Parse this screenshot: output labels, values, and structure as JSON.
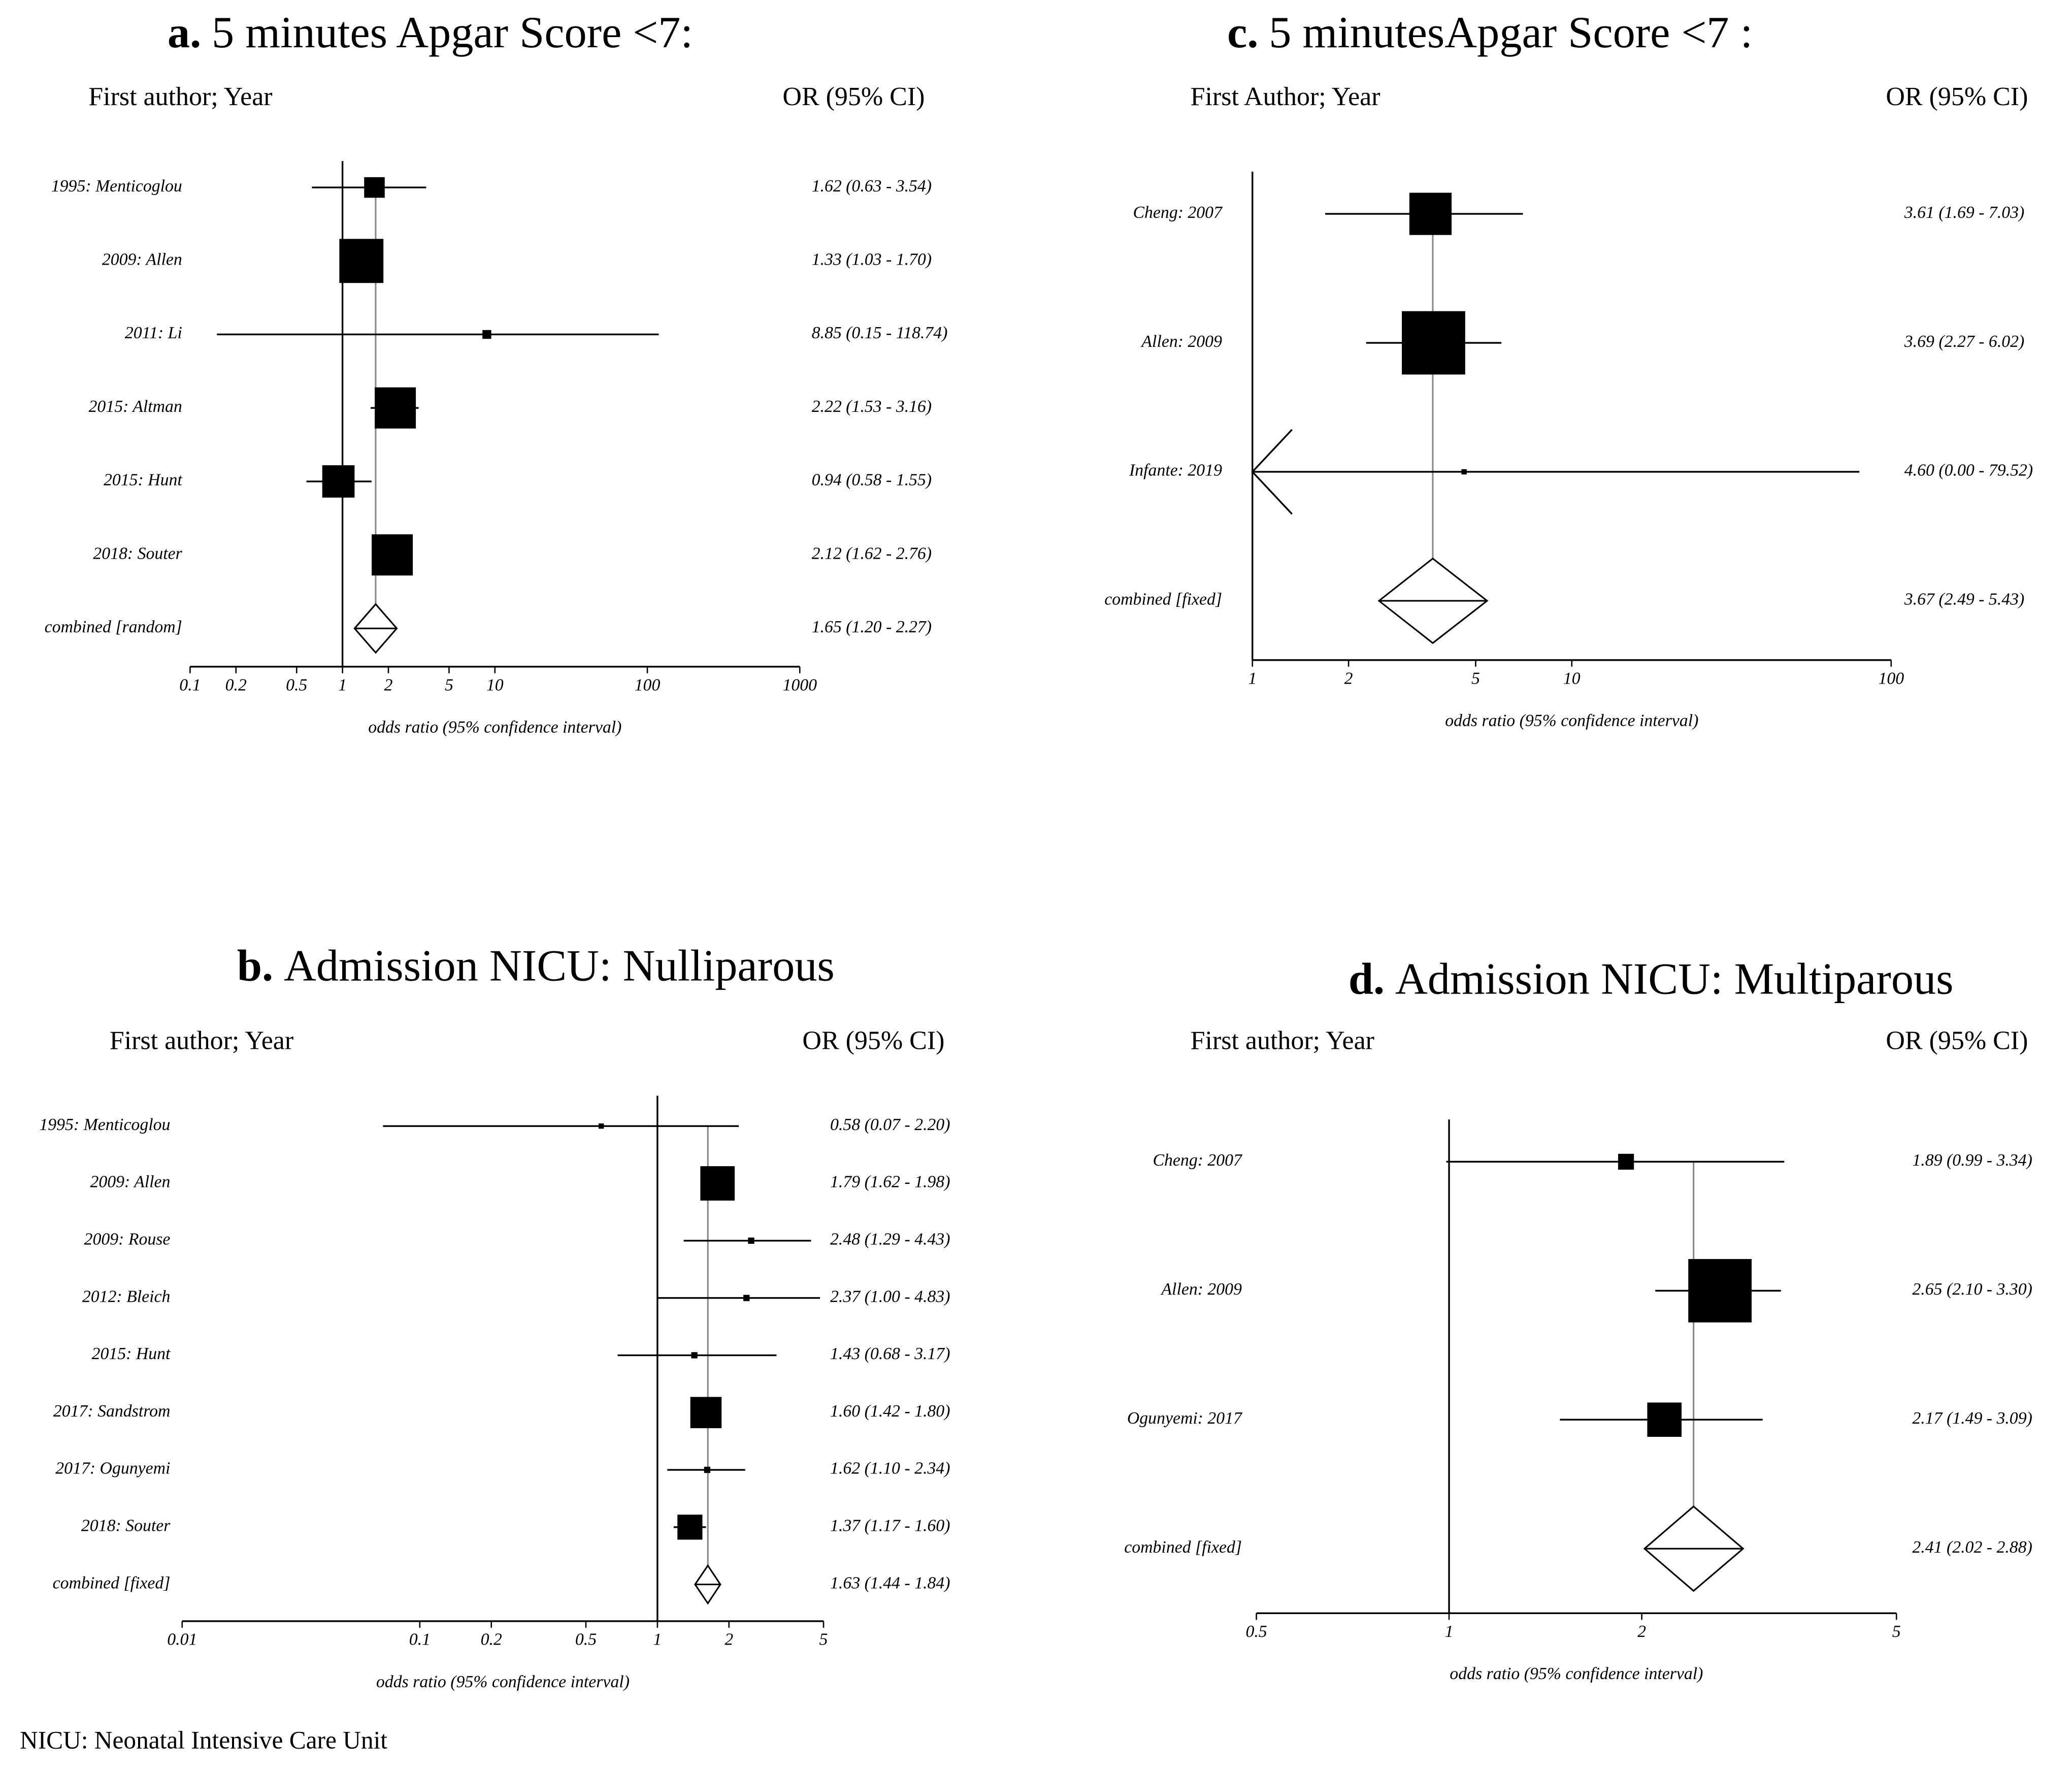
{
  "chart_data": [
    {
      "type": "forest",
      "panel_label": "a.",
      "title": "5 minutes Apgar Score <7:",
      "column_headers": [
        "First author; Year",
        "OR (95% CI)"
      ],
      "studies": [
        "1995: Menticoglou",
        "2009: Allen",
        "2011: Li",
        "2015: Altman",
        "2015: Hunt",
        "2018: Souter"
      ],
      "values": [
        1.62,
        1.33,
        8.85,
        2.22,
        0.94,
        2.12
      ],
      "lower": [
        0.63,
        1.03,
        0.15,
        1.53,
        0.58,
        1.62
      ],
      "upper": [
        3.54,
        1.7,
        118.74,
        3.16,
        1.55,
        2.76
      ],
      "value_labels": [
        "1.62 (0.63 - 3.54)",
        "1.33 (1.03 - 1.70)",
        "8.85 (0.15 - 118.74)",
        "2.22 (1.53 - 3.16)",
        "0.94 (0.58 - 1.55)",
        "2.12 (1.62 - 2.76)"
      ],
      "weights": [
        7,
        15,
        3,
        14,
        11,
        14
      ],
      "combined": {
        "label": "combined [random]",
        "value": 1.65,
        "lower": 1.2,
        "upper": 2.27,
        "value_label": "1.65 (1.20 - 2.27)"
      },
      "xlim": [
        0.1,
        1000
      ],
      "xticks": [
        0.1,
        0.2,
        0.5,
        1,
        2,
        5,
        10,
        100,
        1000
      ],
      "log_x": true,
      "xlabel": "odds ratio (95% confidence interval)"
    },
    {
      "type": "forest",
      "panel_label": "b.",
      "title": "Admission NICU: Nulliparous",
      "column_headers": [
        "First author; Year",
        "OR (95% CI)"
      ],
      "studies": [
        "1995: Menticoglou",
        "2009: Allen",
        "2009: Rouse",
        "2012: Bleich",
        "2015: Hunt",
        "2017: Sandstrom",
        "2017: Ogunyemi",
        "2018: Souter"
      ],
      "values": [
        0.58,
        1.79,
        2.48,
        2.37,
        1.43,
        1.6,
        1.62,
        1.37
      ],
      "lower": [
        0.07,
        1.62,
        1.29,
        1.0,
        0.68,
        1.42,
        1.1,
        1.17
      ],
      "upper": [
        2.2,
        1.98,
        4.43,
        4.83,
        3.17,
        1.8,
        2.34,
        1.6
      ],
      "value_labels": [
        "0.58 (0.07 - 2.20)",
        "1.79 (1.62 - 1.98)",
        "2.48 (1.29 - 4.43)",
        "2.37 (1.00 - 4.83)",
        "1.43 (0.68 - 3.17)",
        "1.60 (1.42 - 1.80)",
        "1.62 (1.10 - 2.34)",
        "1.37 (1.17 - 1.60)"
      ],
      "weights": [
        1,
        11,
        2,
        2,
        2,
        10,
        2,
        8
      ],
      "combined": {
        "label": "combined [fixed]",
        "value": 1.63,
        "lower": 1.44,
        "upper": 1.84,
        "value_label": "1.63 (1.44 - 1.84)"
      },
      "xlim": [
        0.01,
        5
      ],
      "xticks": [
        0.01,
        0.1,
        0.2,
        0.5,
        1,
        2,
        5
      ],
      "log_x": true,
      "xlabel": "odds ratio (95% confidence interval)"
    },
    {
      "type": "forest",
      "panel_label": "c.",
      "title": "5 minutesApgar Score <7 :",
      "column_headers": [
        "First Author; Year",
        "OR (95% CI)"
      ],
      "studies": [
        "Cheng: 2007",
        "Allen: 2009",
        "Infante: 2019"
      ],
      "values": [
        3.61,
        3.69,
        4.6
      ],
      "lower": [
        1.69,
        2.27,
        0.0
      ],
      "upper": [
        7.03,
        6.02,
        79.52
      ],
      "value_labels": [
        "3.61 (1.69 - 7.03)",
        "3.69 (2.27 - 6.02)",
        "4.60 (0.00 - 79.52)"
      ],
      "weights": [
        16,
        24,
        2
      ],
      "combined": {
        "label": "combined [fixed]",
        "value": 3.67,
        "lower": 2.49,
        "upper": 5.43,
        "value_label": "3.67 (2.49 - 5.43)"
      },
      "xlim": [
        1,
        100
      ],
      "xticks": [
        1,
        2,
        5,
        10,
        100
      ],
      "log_x": true,
      "xlabel": "odds ratio (95% confidence interval)"
    },
    {
      "type": "forest",
      "panel_label": "d.",
      "title": "Admission NICU: Multiparous",
      "column_headers": [
        "First author; Year",
        "OR (95% CI)"
      ],
      "studies": [
        "Cheng: 2007",
        "Allen: 2009",
        "Ogunyemi: 2017"
      ],
      "values": [
        1.89,
        2.65,
        2.17
      ],
      "lower": [
        0.99,
        2.1,
        1.49
      ],
      "upper": [
        3.34,
        3.3,
        3.09
      ],
      "value_labels": [
        "1.89 (0.99 - 3.34)",
        "2.65 (2.10 - 3.30)",
        "2.17 (1.49 - 3.09)"
      ],
      "weights": [
        6,
        24,
        13
      ],
      "combined": {
        "label": "combined [fixed]",
        "value": 2.41,
        "lower": 2.02,
        "upper": 2.88,
        "value_label": "2.41 (2.02 - 2.88)"
      },
      "xlim": [
        0.5,
        5
      ],
      "xticks": [
        0.5,
        1,
        2,
        5
      ],
      "log_x": true,
      "xlabel": "odds ratio (95% confidence interval)"
    }
  ],
  "footnote": "NICU: Neonatal Intensive Care Unit"
}
